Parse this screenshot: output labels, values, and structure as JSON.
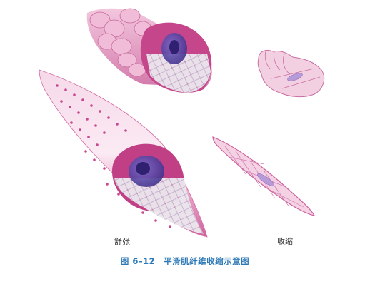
{
  "labels": {
    "relaxed": "舒张",
    "contracted": "收缩"
  },
  "caption": {
    "figure_number": "图 6–12",
    "title": "平滑肌纤维收缩示意图"
  },
  "colors": {
    "caption": "#2b78b7",
    "sarcolemma": "#d9609b",
    "nucleus": "#4b3a9a",
    "cut_face": "#c23f86",
    "myofilament_lattice": "#e9e4ea"
  }
}
